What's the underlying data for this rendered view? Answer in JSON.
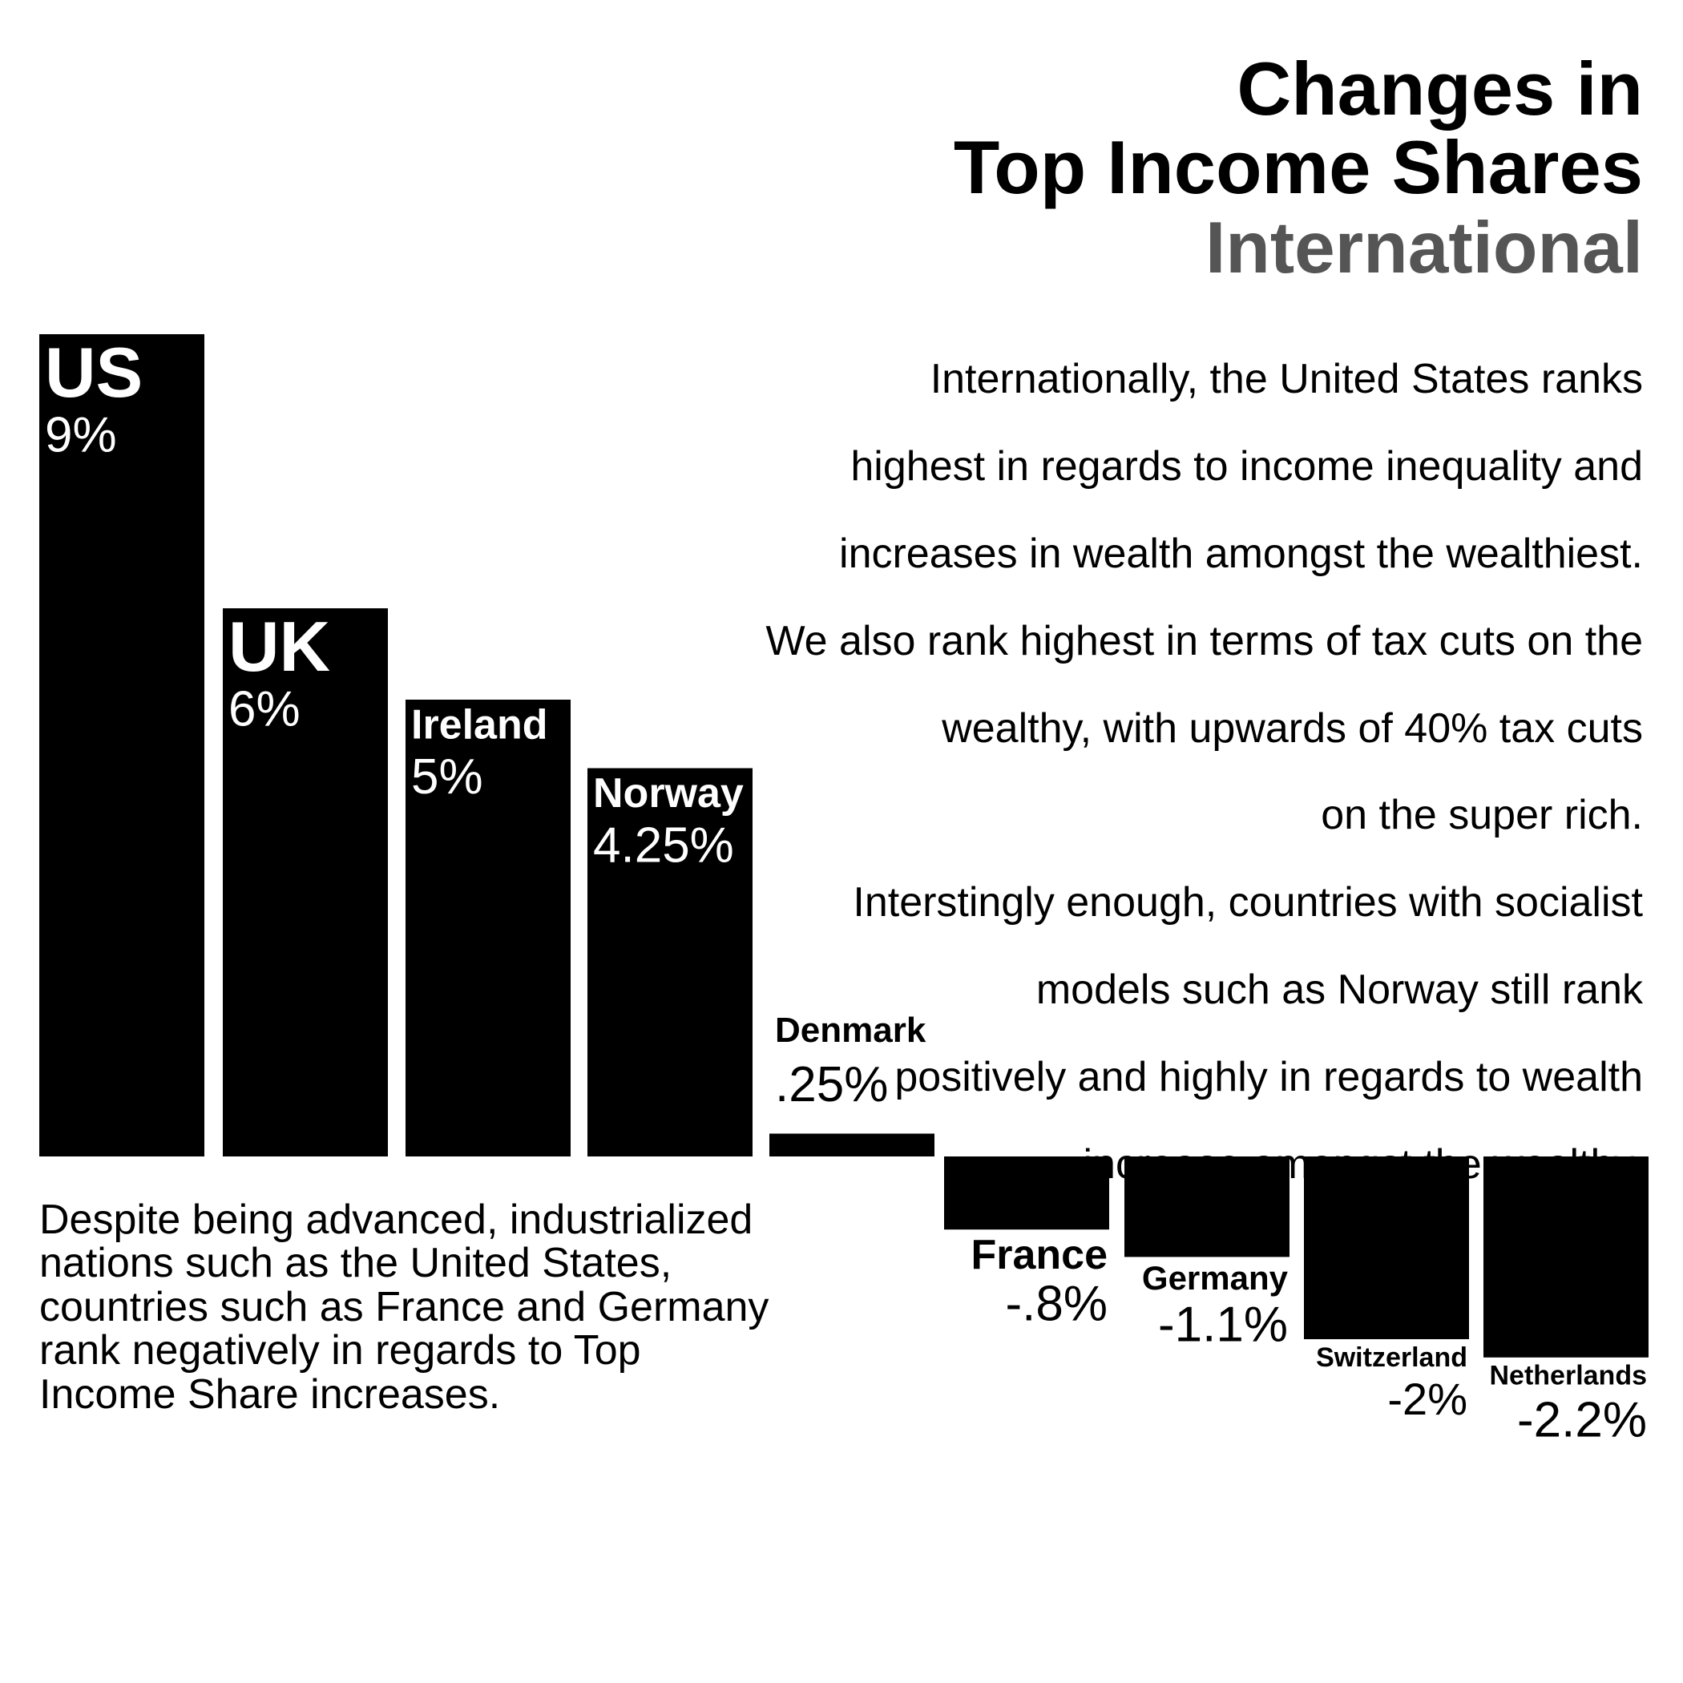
{
  "header": {
    "title_lines": [
      "Changes in",
      "Top Income Shares"
    ],
    "subtitle": "International"
  },
  "description_top": [
    "Internationally, the United States ranks",
    "highest in regards to income inequality and",
    "increases in wealth amongst the wealthiest.",
    "We also rank highest in terms of tax cuts on the",
    "wealthy, with upwards of 40% tax cuts",
    "on the super rich.",
    "Interstingly enough, countries with socialist",
    "models such as Norway still rank ",
    "positively and highly in regards to wealth",
    "increase amongst the wealthy."
  ],
  "description_bottom": [
    "Despite being advanced, industrialized",
    "nations such as the United States,",
    "countries such as France and Germany",
    "rank negatively in regards to Top",
    "Income Share increases."
  ],
  "chart_data": {
    "type": "bar",
    "categories": [
      "US",
      "UK",
      "Ireland",
      "Norway",
      "Denmark",
      "France",
      "Germany",
      "Switzerland",
      "Netherlands"
    ],
    "values": [
      9,
      6,
      5,
      4.25,
      0.25,
      -0.8,
      -1.1,
      -2,
      -2.2
    ],
    "value_labels": [
      "9%",
      "6%",
      "5%",
      "4.25%",
      ".25%",
      "-.8%",
      "-1.1%",
      "-2%",
      "-2.2%"
    ],
    "bar_color": "#000000",
    "label_color_inside": "#ffffff",
    "label_color_outside": "#000000",
    "grid": false,
    "legend": false
  }
}
